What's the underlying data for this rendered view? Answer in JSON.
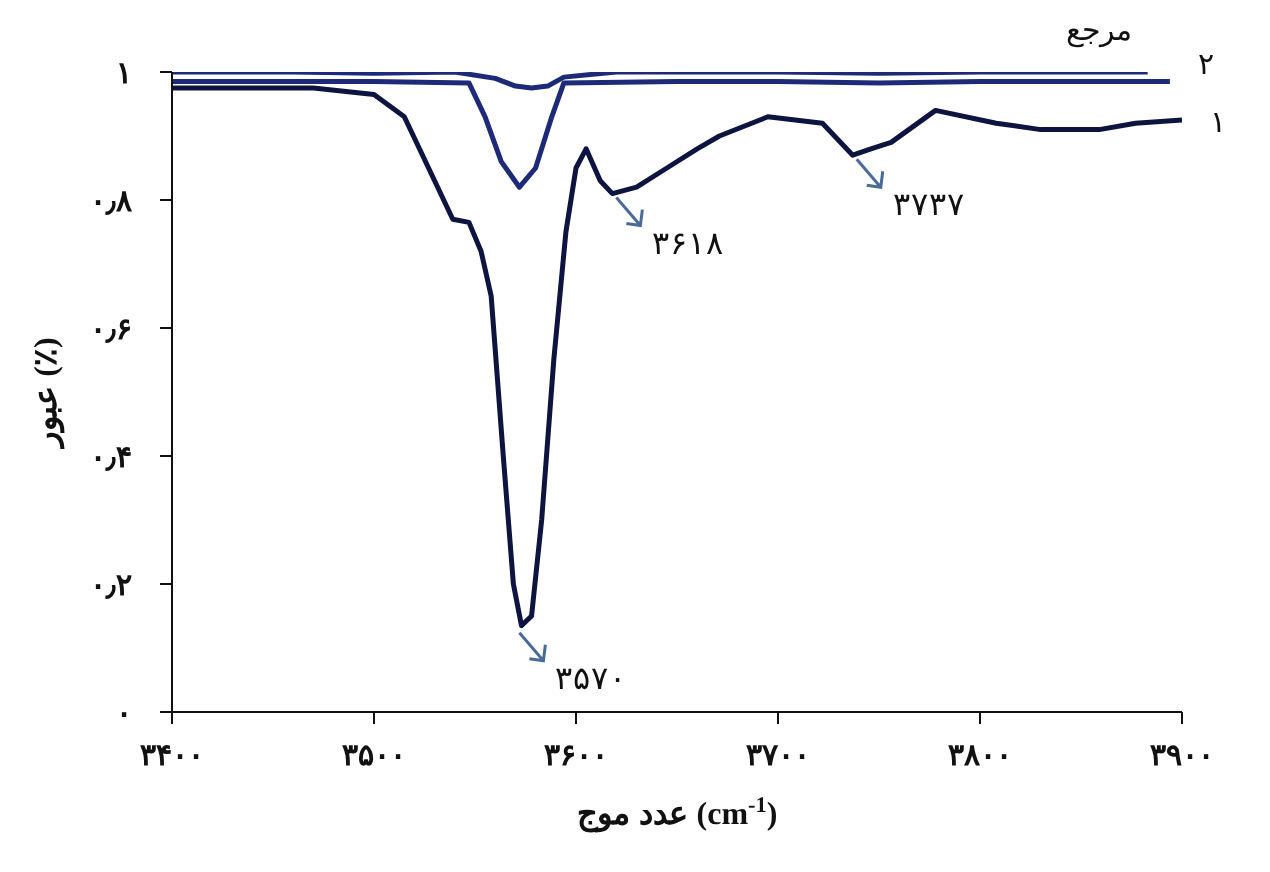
{
  "chart_data": {
    "type": "line",
    "xlabel": "عدد موج (cm$^{-1}$)",
    "ylabel": "عبور (٪)",
    "xlim": [
      3400,
      3900
    ],
    "xticks": [
      {
        "value": 3400,
        "label": "۳۴۰۰"
      },
      {
        "value": 3500,
        "label": "۳۵۰۰"
      },
      {
        "value": 3600,
        "label": "۳۶۰۰"
      },
      {
        "value": 3700,
        "label": "۳۷۰۰"
      },
      {
        "value": 3800,
        "label": "۳۸۰۰"
      },
      {
        "value": 3900,
        "label": "۳۹۰۰"
      }
    ],
    "ylim": [
      0,
      1
    ],
    "yticks": [
      {
        "value": 0,
        "label": "۰"
      },
      {
        "value": 0.2,
        "label": "۰٫۲"
      },
      {
        "value": 0.4,
        "label": "۰٫۴"
      },
      {
        "value": 0.6,
        "label": "۰٫۶"
      },
      {
        "value": 0.8,
        "label": "۰٫۸"
      },
      {
        "value": 1,
        "label": "۱"
      }
    ],
    "grid": false,
    "legend": false,
    "marker": "none",
    "line_style": "solid",
    "series": [
      {
        "name": "مرجع",
        "color": "#1c2a78",
        "x": [
          3400,
          3460,
          3500,
          3540,
          3560,
          3570,
          3578,
          3586,
          3594,
          3620,
          3700,
          3750,
          3800,
          3850,
          3883
        ],
        "values": [
          1.0,
          1.0,
          0.998,
          1.0,
          0.99,
          0.978,
          0.975,
          0.978,
          0.992,
          1.0,
          1.0,
          0.998,
          1.0,
          1.0,
          1.0
        ]
      },
      {
        "name": "۲",
        "color": "#1c2a78",
        "x": [
          3400,
          3500,
          3547,
          3555,
          3563,
          3572,
          3580,
          3588,
          3594,
          3650,
          3700,
          3750,
          3800,
          3894
        ],
        "values": [
          0.985,
          0.985,
          0.983,
          0.93,
          0.86,
          0.82,
          0.85,
          0.93,
          0.983,
          0.985,
          0.985,
          0.983,
          0.985,
          0.985
        ]
      },
      {
        "name": "۱",
        "color": "#0e1440",
        "x": [
          3400,
          3470,
          3500,
          3515,
          3530,
          3539,
          3547,
          3553,
          3558,
          3564,
          3569,
          3573,
          3578,
          3583,
          3589,
          3595,
          3600,
          3605,
          3612,
          3618,
          3630,
          3645,
          3660,
          3671,
          3695,
          3722,
          3737,
          3746,
          3756,
          3778,
          3808,
          3830,
          3859,
          3877,
          3900
        ],
        "values": [
          0.975,
          0.975,
          0.965,
          0.93,
          0.83,
          0.77,
          0.765,
          0.72,
          0.65,
          0.4,
          0.2,
          0.135,
          0.15,
          0.3,
          0.55,
          0.75,
          0.85,
          0.88,
          0.83,
          0.81,
          0.82,
          0.85,
          0.88,
          0.9,
          0.93,
          0.92,
          0.87,
          0.88,
          0.89,
          0.94,
          0.92,
          0.91,
          0.91,
          0.92,
          0.925
        ]
      }
    ],
    "annotations": [
      {
        "text": "۳۵۷۰",
        "x": 3570,
        "y": 0.13
      },
      {
        "text": "۳۶۱۸",
        "x": 3618,
        "y": 0.81
      },
      {
        "text": "۳۷۳۷",
        "x": 3737,
        "y": 0.87
      }
    ]
  }
}
